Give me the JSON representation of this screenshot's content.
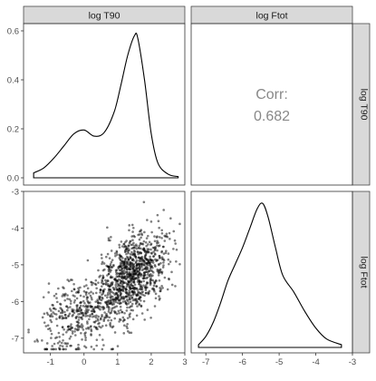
{
  "chart_data": {
    "type": "scatter-matrix",
    "variables": [
      "log T90",
      "log Ftot"
    ],
    "correlation": {
      "label": "Corr:",
      "value": "0.682"
    },
    "panels": [
      {
        "position": "top-left",
        "type": "density",
        "variable": "log T90",
        "x_range": [
          -1.8,
          3.0
        ],
        "y_range": [
          0.0,
          0.6
        ],
        "y_ticks": [
          "0.0",
          "0.2",
          "0.4",
          "0.6"
        ],
        "x": [
          -1.5,
          -1.2,
          -0.9,
          -0.6,
          -0.3,
          0.0,
          0.3,
          0.6,
          0.9,
          1.1,
          1.3,
          1.5,
          1.6,
          1.8,
          2.0,
          2.2,
          2.5,
          2.8
        ],
        "y": [
          0.02,
          0.04,
          0.08,
          0.13,
          0.18,
          0.195,
          0.17,
          0.185,
          0.27,
          0.38,
          0.5,
          0.58,
          0.57,
          0.4,
          0.18,
          0.06,
          0.015,
          0.005
        ]
      },
      {
        "position": "top-right",
        "type": "correlation",
        "variables": [
          "log Ftot",
          "log T90"
        ]
      },
      {
        "position": "bottom-left",
        "type": "scatter",
        "x_variable": "log T90",
        "y_variable": "log Ftot",
        "x_range": [
          -1.8,
          3.0
        ],
        "y_range": [
          -7.4,
          -3.0
        ],
        "x_ticks": [
          "-1",
          "0",
          "1",
          "2",
          "3"
        ],
        "y_ticks": [
          "-3",
          "-4",
          "-5",
          "-6",
          "-7"
        ],
        "point_count": 1400,
        "short_cluster_center": [
          -0.1,
          -6.3
        ],
        "long_cluster_center": [
          1.5,
          -5.3
        ],
        "correlation": 0.682
      },
      {
        "position": "bottom-right",
        "type": "density",
        "variable": "log Ftot",
        "x_range": [
          -7.4,
          -3.0
        ],
        "y_range": [
          0.0,
          0.55
        ],
        "x_ticks": [
          "-7",
          "-6",
          "-5",
          "-4",
          "-3"
        ],
        "x": [
          -7.2,
          -7.0,
          -6.8,
          -6.6,
          -6.4,
          -6.2,
          -6.0,
          -5.8,
          -5.6,
          -5.45,
          -5.3,
          -5.1,
          -4.9,
          -4.6,
          -4.3,
          -4.0,
          -3.7,
          -3.3
        ],
        "y": [
          0.01,
          0.04,
          0.09,
          0.16,
          0.24,
          0.3,
          0.36,
          0.43,
          0.5,
          0.52,
          0.47,
          0.36,
          0.26,
          0.2,
          0.13,
          0.07,
          0.03,
          0.01
        ]
      }
    ],
    "colors": {
      "strip": "#d9d9d9",
      "frame": "#333333",
      "line": "#000000",
      "point": "#000000",
      "corr_text": "#888888",
      "tick_text": "#4d4d4d"
    }
  }
}
